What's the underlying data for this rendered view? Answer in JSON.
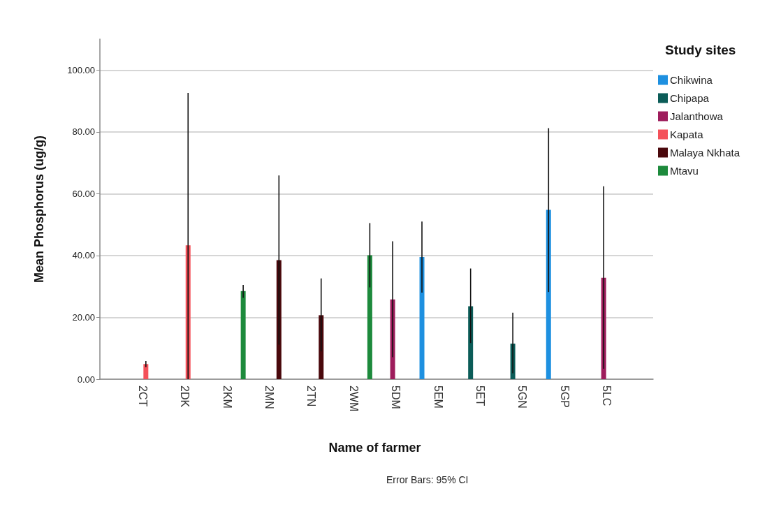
{
  "chart_data": {
    "type": "bar",
    "xlabel": "Name of farmer",
    "ylabel": "Mean Phosphorus (ug/g)",
    "legend_title": "Study sites",
    "annotations": [
      "Error Bars: 95% CI"
    ],
    "categories": [
      "2CT",
      "2DK",
      "2KM",
      "2MN",
      "2TN",
      "2WM",
      "5DM",
      "5EM",
      "5ET",
      "5GN",
      "5GP",
      "5LC"
    ],
    "series": [
      {
        "name": "Chikwina",
        "color": "#1e90e0",
        "values": [
          null,
          null,
          null,
          null,
          null,
          null,
          null,
          39.5,
          null,
          null,
          54.8,
          null
        ],
        "errors": [
          null,
          null,
          null,
          null,
          null,
          null,
          null,
          [
            28.0,
            51.0
          ],
          null,
          null,
          [
            28.2,
            81.2
          ],
          null
        ]
      },
      {
        "name": "Chipapa",
        "color": "#0b5c58",
        "values": [
          null,
          null,
          null,
          null,
          null,
          null,
          null,
          null,
          23.6,
          11.5,
          null,
          null
        ],
        "errors": [
          null,
          null,
          null,
          null,
          null,
          null,
          null,
          null,
          [
            11.7,
            35.8
          ],
          [
            1.9,
            21.5
          ],
          null,
          null
        ]
      },
      {
        "name": "Jalanthowa",
        "color": "#9e1d5c",
        "values": [
          null,
          null,
          null,
          null,
          null,
          null,
          25.8,
          null,
          null,
          null,
          null,
          32.8
        ],
        "errors": [
          null,
          null,
          null,
          null,
          null,
          null,
          [
            7.1,
            44.6
          ],
          null,
          null,
          null,
          null,
          [
            3.4,
            62.4
          ]
        ]
      },
      {
        "name": "Kapata",
        "color": "#f4515a",
        "values": [
          4.9,
          43.3,
          null,
          null,
          null,
          null,
          null,
          null,
          null,
          null,
          null,
          null
        ],
        "errors": [
          [
            3.9,
            5.9
          ],
          [
            0,
            92.6
          ],
          null,
          null,
          null,
          null,
          null,
          null,
          null,
          null,
          null,
          null
        ]
      },
      {
        "name": "Malaya Nkhata",
        "color": "#4a080c",
        "values": [
          null,
          null,
          null,
          38.5,
          20.7,
          null,
          null,
          null,
          null,
          null,
          null,
          null
        ],
        "errors": [
          null,
          null,
          null,
          [
            11.2,
            65.9
          ],
          [
            9.0,
            32.6
          ],
          null,
          null,
          null,
          null,
          null,
          null,
          null
        ]
      },
      {
        "name": "Mtavu",
        "color": "#1d8a3c",
        "values": [
          null,
          null,
          28.5,
          null,
          null,
          40.1,
          null,
          null,
          null,
          null,
          null,
          null
        ],
        "errors": [
          null,
          null,
          [
            26.3,
            30.5
          ],
          null,
          null,
          [
            29.7,
            50.5
          ],
          null,
          null,
          null,
          null,
          null,
          null
        ]
      }
    ],
    "ylim": [
      0,
      110
    ],
    "yticks": [
      {
        "value": 0,
        "label": "0.00"
      },
      {
        "value": 20,
        "label": "20.00"
      },
      {
        "value": 40,
        "label": "40.00"
      },
      {
        "value": 60,
        "label": "60.00"
      },
      {
        "value": 80,
        "label": "80.00"
      },
      {
        "value": 100,
        "label": "100.00"
      }
    ],
    "grid": "y",
    "legend": "right"
  }
}
